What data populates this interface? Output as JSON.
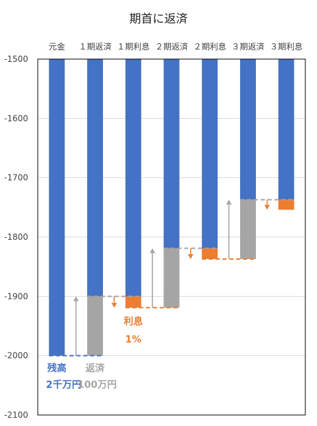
{
  "chart_data": {
    "type": "bar",
    "title": "期首に返済",
    "x_axis_position": "top",
    "y_axis": {
      "min": -2100,
      "max": -1500,
      "ticks": [
        -1500,
        -1600,
        -1700,
        -1800,
        -1900,
        -2000,
        -2100
      ],
      "tick_labels": [
        "-1500",
        "-1600",
        "-1700",
        "-1800",
        "-1900",
        "-2000",
        "-2100"
      ],
      "grid": true
    },
    "categories": [
      "元金",
      "１期返済",
      "１期利息",
      "２期返済",
      "２期利息",
      "３期返済",
      "３期利息"
    ],
    "bars": [
      {
        "category": "元金",
        "segments": [
          {
            "from": -1500,
            "to": -2000,
            "color": "#4472c4"
          }
        ]
      },
      {
        "category": "１期返済",
        "segments": [
          {
            "from": -1500,
            "to": -1900,
            "color": "#4472c4"
          },
          {
            "from": -1900,
            "to": -2000,
            "color": "#a5a5a5"
          }
        ]
      },
      {
        "category": "１期利息",
        "segments": [
          {
            "from": -1500,
            "to": -1900,
            "color": "#4472c4"
          },
          {
            "from": -1900,
            "to": -1919,
            "color": "#ed7d31"
          }
        ]
      },
      {
        "category": "２期返済",
        "segments": [
          {
            "from": -1500,
            "to": -1819,
            "color": "#4472c4"
          },
          {
            "from": -1819,
            "to": -1919,
            "color": "#a5a5a5"
          }
        ]
      },
      {
        "category": "２期利息",
        "segments": [
          {
            "from": -1500,
            "to": -1819,
            "color": "#4472c4"
          },
          {
            "from": -1819,
            "to": -1837,
            "color": "#ed7d31"
          }
        ]
      },
      {
        "category": "３期返済",
        "segments": [
          {
            "from": -1500,
            "to": -1737,
            "color": "#4472c4"
          },
          {
            "from": -1737,
            "to": -1837,
            "color": "#a5a5a5"
          }
        ]
      },
      {
        "category": "３期利息",
        "segments": [
          {
            "from": -1500,
            "to": -1737,
            "color": "#4472c4"
          },
          {
            "from": -1737,
            "to": -1754,
            "color": "#ed7d31"
          }
        ]
      }
    ],
    "connectors": [
      {
        "type": "repay",
        "from_category": 0,
        "to_category": 1,
        "y": -2000,
        "target_y": -1900,
        "color": "#4472c4",
        "arrow_color": "#a5a5a5"
      },
      {
        "type": "interest",
        "from_category": 1,
        "to_category": 2,
        "y": -1900,
        "target_y": -1919,
        "color": "#a5a5a5",
        "arrow_color": "#ed7d31"
      },
      {
        "type": "repay",
        "from_category": 2,
        "to_category": 3,
        "y": -1919,
        "target_y": -1819,
        "color": "#ed7d31",
        "arrow_color": "#a5a5a5"
      },
      {
        "type": "interest",
        "from_category": 3,
        "to_category": 4,
        "y": -1819,
        "target_y": -1837,
        "color": "#a5a5a5",
        "arrow_color": "#ed7d31"
      },
      {
        "type": "repay",
        "from_category": 4,
        "to_category": 5,
        "y": -1837,
        "target_y": -1737,
        "color": "#ed7d31",
        "arrow_color": "#a5a5a5"
      },
      {
        "type": "interest",
        "from_category": 5,
        "to_category": 6,
        "y": -1737,
        "target_y": -1754,
        "color": "#a5a5a5",
        "arrow_color": "#ed7d31"
      }
    ],
    "annotations": [
      {
        "id": "balance-label",
        "text": "残高",
        "color": "#4472c4",
        "near_category": 0,
        "y": -2000
      },
      {
        "id": "balance-amount",
        "text": "2千万円",
        "color": "#4472c4",
        "near_category": 0,
        "y": -2000
      },
      {
        "id": "repay-label",
        "text": "返済",
        "color": "#a5a5a5",
        "near_category": 1,
        "y": -2000
      },
      {
        "id": "repay-amount",
        "text": "100万円",
        "color": "#a5a5a5",
        "near_category": 1,
        "y": -2000
      },
      {
        "id": "interest-label",
        "text": "利息",
        "color": "#ed7d31",
        "near_category": 2,
        "y": -1919
      },
      {
        "id": "interest-rate",
        "text": "1%",
        "color": "#ed7d31",
        "near_category": 2,
        "y": -1919
      }
    ]
  }
}
